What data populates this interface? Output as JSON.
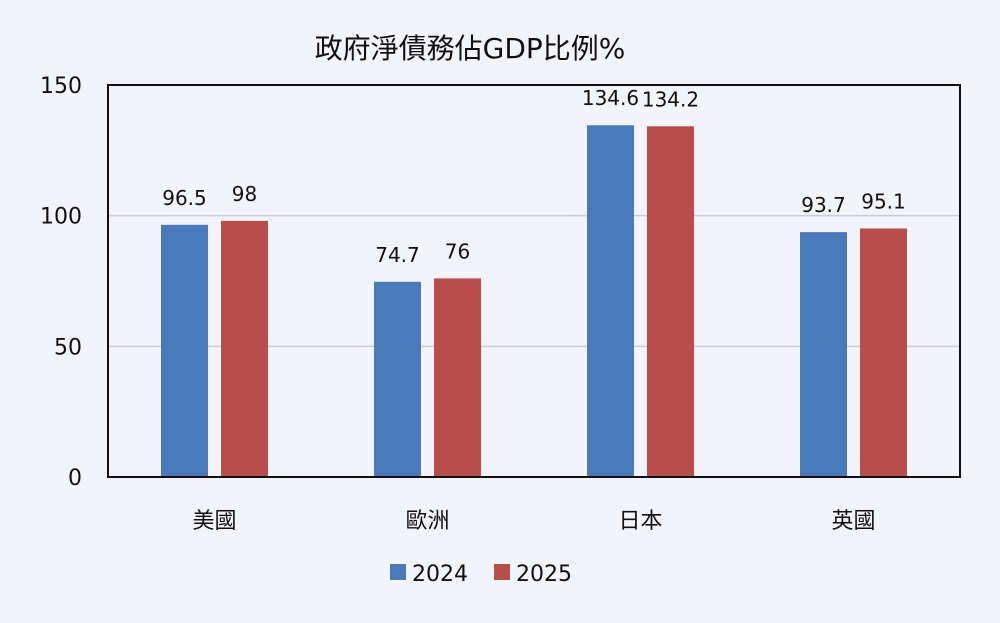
{
  "chart_data": {
    "type": "bar",
    "title": "政府淨債務佔GDP比例%",
    "xlabel": "",
    "ylabel": "",
    "categories": [
      "美國",
      "歐洲",
      "日本",
      "英國"
    ],
    "series": [
      {
        "name": "2024",
        "color": "#4a7ab9",
        "values": [
          96.5,
          74.7,
          134.6,
          93.7
        ],
        "labels": [
          "96.5",
          "74.7",
          "134.6",
          "93.7"
        ]
      },
      {
        "name": "2025",
        "color": "#b84d4b",
        "values": [
          98,
          76,
          134.2,
          95.1
        ],
        "labels": [
          "98",
          "76",
          "134.2",
          "95.1"
        ]
      }
    ],
    "ylim": [
      0,
      150
    ],
    "yticks": [
      0,
      50,
      100,
      150
    ],
    "ytick_labels": [
      "0",
      "50",
      "100",
      "150"
    ],
    "grid": true,
    "legend_position": "bottom"
  }
}
